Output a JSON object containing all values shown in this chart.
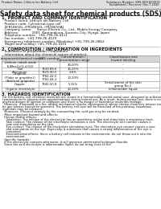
{
  "header_left": "Product Name: Lithium Ion Battery Cell",
  "header_right_line1": "Substance Number: SRS-SDS-000019",
  "header_right_line2": "Established / Revision: Dec.7.2010",
  "title": "Safety data sheet for chemical products (SDS)",
  "section1_title": "1. PRODUCT AND COMPANY IDENTIFICATION",
  "section1_lines": [
    "· Product name: Lithium Ion Battery Cell",
    "· Product code: Cylindrical-type cell",
    "  (IFR18650L, IFR18650L, IFR18650A)",
    "· Company name:     Sanyo Electric Co., Ltd., Mobile Energy Company",
    "· Address:             2001  Kamimakura, Sumoto-City, Hyogo, Japan",
    "· Telephone number:  +81-799-26-4111",
    "· Fax number:  +81-799-26-4129",
    "· Emergency telephone number (Weekday) +81-799-26-3862",
    "  (Night and holiday) +81-799-26-4101"
  ],
  "section2_title": "2. COMPOSITION / INFORMATION ON INGREDIENTS",
  "section2_sub": "· Substance or preparation: Preparation",
  "section2_sub2": "· Information about the chemical nature of product:",
  "table_col_headers": [
    "Component/chemical name",
    "CAS number",
    "Concentration /\nConcentration range",
    "Classification and\nhazard labeling"
  ],
  "table_rows": [
    [
      "Lithium cobalt oxide\n(LiMnxCo(1-x)O2)",
      "-",
      "30-60%",
      "-"
    ],
    [
      "Iron",
      "7439-89-6",
      "15-25%",
      "-"
    ],
    [
      "Aluminum",
      "7429-90-5",
      "2-6%",
      "-"
    ],
    [
      "Graphite\n(Flake or graphite-l)\n(Artificial graphite)",
      "7782-42-5\n7782-44-2",
      "10-20%",
      "-"
    ],
    [
      "Copper",
      "7440-50-8",
      "5-15%",
      "Sensitization of the skin\ngroup No.2"
    ],
    [
      "Organic electrolyte",
      "-",
      "10-20%",
      "Inflammable liquid"
    ]
  ],
  "section3_title": "3. HAZARDS IDENTIFICATION",
  "section3_para1": [
    "For the battery cell, chemical materials are stored in a hermetically sealed metal case, designed to withstand",
    "temperatures in plasma-state-approximations during normal use. As a result, during normal use, there is no",
    "physical danger of ignition or explosion and there is no danger of hazardous materials leakage.",
    "  However, if exposed to a fire, added mechanical shocks, decomposed, where electro-chemistry misuse can",
    "be gas release cannot be operated. The battery cell case will be breached of fire-pathway, hazardous",
    "materials may be released.",
    "  Moreover, if heated strongly by the surrounding fire, acid gas may be emitted."
  ],
  "section3_para2_title": "· Most important hazard and effects:",
  "section3_para2": [
    "  Human health effects:",
    "    Inhalation: The release of the electrolyte has an anesthetic action and stimulates a respiratory tract.",
    "    Skin contact: The release of the electrolyte stimulates a skin. The electrolyte skin contact causes a",
    "    sore and stimulation on the skin.",
    "    Eye contact: The release of the electrolyte stimulates eyes. The electrolyte eye contact causes a sore",
    "    and stimulation on the eye. Especially, a substance that causes a strong inflammation of the eye is",
    "    contained.",
    "    Environmental effects: Since a battery cell remains in the environment, do not throw out it into the",
    "    environment."
  ],
  "section3_para3_title": "· Specific hazards:",
  "section3_para3": [
    "  If the electrolyte contacts with water, it will generate detrimental hydrogen fluoride.",
    "  Since the said electrolyte is inflammable liquid, do not bring close to fire."
  ],
  "bg_color": "#ffffff",
  "text_color": "#111111",
  "header_bg": "#e0e0e0",
  "table_header_bg": "#d4d4d4"
}
